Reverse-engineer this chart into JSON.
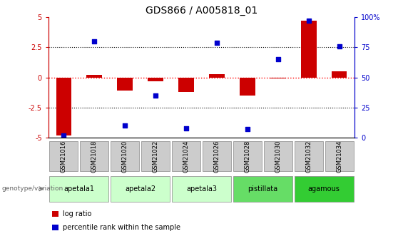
{
  "title": "GDS866 / A005818_01",
  "samples": [
    "GSM21016",
    "GSM21018",
    "GSM21020",
    "GSM21022",
    "GSM21024",
    "GSM21026",
    "GSM21028",
    "GSM21030",
    "GSM21032",
    "GSM21034"
  ],
  "log_ratio": [
    -4.8,
    0.2,
    -1.1,
    -0.3,
    -1.2,
    0.3,
    -1.5,
    -0.1,
    4.7,
    0.5
  ],
  "percentile_rank": [
    2,
    80,
    10,
    35,
    8,
    79,
    7,
    65,
    97,
    76
  ],
  "ylim_left": [
    -5,
    5
  ],
  "ylim_right": [
    0,
    100
  ],
  "hline_dotted": [
    2.5,
    -2.5
  ],
  "bar_color": "#cc0000",
  "dot_color": "#0000cc",
  "groups": [
    {
      "label": "apetala1",
      "start": 0,
      "end": 2,
      "color": "#ccffcc"
    },
    {
      "label": "apetala2",
      "start": 2,
      "end": 4,
      "color": "#ccffcc"
    },
    {
      "label": "apetala3",
      "start": 4,
      "end": 6,
      "color": "#ccffcc"
    },
    {
      "label": "pistillata",
      "start": 6,
      "end": 8,
      "color": "#66dd66"
    },
    {
      "label": "agamous",
      "start": 8,
      "end": 10,
      "color": "#33cc33"
    }
  ],
  "genotype_label": "genotype/variation",
  "legend_log_ratio": "log ratio",
  "legend_percentile": "percentile rank within the sample",
  "bg_color": "#ffffff",
  "tick_color_left": "#cc0000",
  "tick_color_right": "#0000cc",
  "sample_label_bg": "#cccccc"
}
